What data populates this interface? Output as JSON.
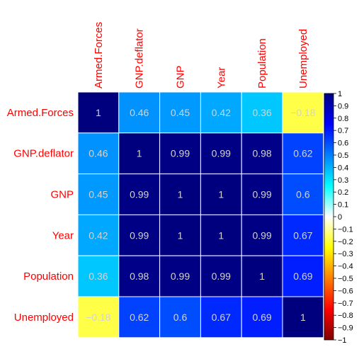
{
  "chart_data": {
    "type": "heatmap",
    "variables": [
      "Armed.Forces",
      "GNP.deflator",
      "GNP",
      "Year",
      "Population",
      "Unemployed"
    ],
    "matrix": [
      [
        1,
        0.46,
        0.45,
        0.42,
        0.36,
        -0.18
      ],
      [
        0.46,
        1,
        0.99,
        0.99,
        0.98,
        0.62
      ],
      [
        0.45,
        0.99,
        1,
        1,
        0.99,
        0.6
      ],
      [
        0.42,
        0.99,
        1,
        1,
        0.99,
        0.67
      ],
      [
        0.36,
        0.98,
        0.99,
        0.99,
        1,
        0.69
      ],
      [
        -0.18,
        0.62,
        0.6,
        0.67,
        0.69,
        1
      ]
    ],
    "cell_labels": [
      [
        "1",
        "0.46",
        "0.45",
        "0.42",
        "0.36",
        "−0.18"
      ],
      [
        "0.46",
        "1",
        "0.99",
        "0.99",
        "0.98",
        "0.62"
      ],
      [
        "0.45",
        "0.99",
        "1",
        "1",
        "0.99",
        "0.6"
      ],
      [
        "0.42",
        "0.99",
        "1",
        "1",
        "0.99",
        "0.67"
      ],
      [
        "0.36",
        "0.98",
        "0.99",
        "0.99",
        "1",
        "0.69"
      ],
      [
        "−0.18",
        "0.62",
        "0.6",
        "0.67",
        "0.69",
        "1"
      ]
    ],
    "colorbar": {
      "range": [
        -1,
        1
      ],
      "ticks": [
        "1",
        "0.9",
        "0.8",
        "0.7",
        "0.6",
        "0.5",
        "0.4",
        "0.3",
        "0.2",
        "0.1",
        "0",
        "−0.1",
        "−0.2",
        "−0.3",
        "−0.4",
        "−0.5",
        "−0.6",
        "−0.7",
        "−0.8",
        "−0.9",
        "−1"
      ],
      "colors": [
        "#7f0000",
        "#ff0000",
        "#ff7f00",
        "#ffff00",
        "#ffffff",
        "#00ffff",
        "#007fff",
        "#0000ff",
        "#00007f"
      ]
    },
    "label_color": "#ff0000",
    "grid_line_color": "#ffffff",
    "cell_text_color": "#d3d3d3"
  }
}
